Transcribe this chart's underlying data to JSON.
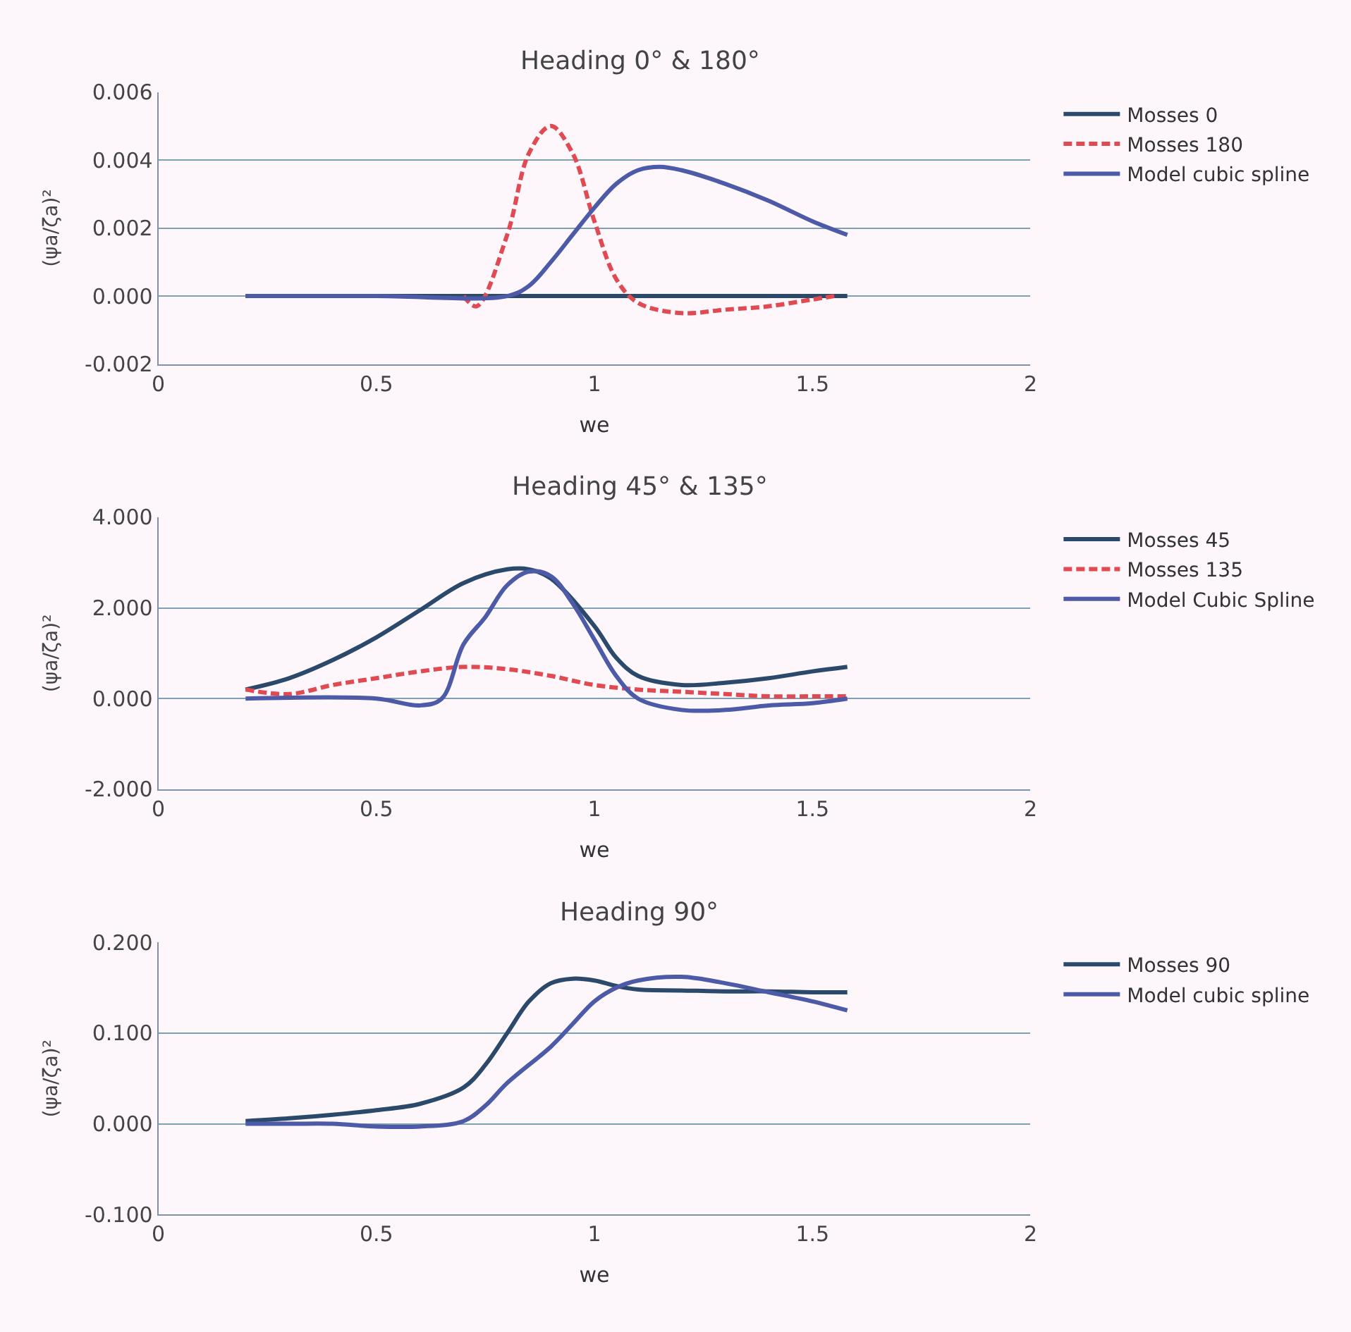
{
  "chart_data": [
    {
      "type": "line",
      "title": "Heading 0° & 180°",
      "xlabel": "we",
      "ylabel": "(ψa/ζa)²",
      "xlim": [
        0,
        2
      ],
      "xticks": [
        0,
        0.5,
        1,
        1.5,
        2
      ],
      "ylim": [
        -0.002,
        0.006
      ],
      "yticks": [
        {
          "value": -0.002,
          "label": "-0.002"
        },
        {
          "value": 0,
          "label": "0.000"
        },
        {
          "value": 0.002,
          "label": "0.002"
        },
        {
          "value": 0.004,
          "label": "0.004"
        },
        {
          "value": 0.006,
          "label": "0.006"
        }
      ],
      "grid": "y",
      "legend": "right",
      "marker": "none",
      "series": [
        {
          "name": "Mosses 0",
          "color": "#2b4a6b",
          "line_style": "solid",
          "x": [
            0.2,
            0.4,
            0.6,
            0.8,
            1.0,
            1.2,
            1.4,
            1.58
          ],
          "values": [
            0,
            0,
            0,
            0,
            0,
            0,
            0,
            0
          ]
        },
        {
          "name": "Mosses 180",
          "color": "#e04a52",
          "line_style": "dashed",
          "x": [
            0.7,
            0.73,
            0.8,
            0.85,
            0.9,
            0.95,
            1.0,
            1.05,
            1.1,
            1.2,
            1.3,
            1.4,
            1.5,
            1.55
          ],
          "values": [
            0,
            -0.0003,
            0.0018,
            0.0042,
            0.005,
            0.0042,
            0.0022,
            0.0005,
            -0.0002,
            -0.0005,
            -0.0004,
            -0.0003,
            -0.0001,
            0
          ]
        },
        {
          "name": "Model cubic spline",
          "color": "#4c5aa8",
          "line_style": "solid",
          "x": [
            0.2,
            0.5,
            0.8,
            0.85,
            0.9,
            0.95,
            1.0,
            1.05,
            1.1,
            1.15,
            1.2,
            1.3,
            1.4,
            1.5,
            1.58
          ],
          "values": [
            0,
            0,
            0,
            0.0003,
            0.001,
            0.0018,
            0.0026,
            0.0033,
            0.0037,
            0.0038,
            0.0037,
            0.0033,
            0.0028,
            0.0022,
            0.0018
          ]
        }
      ]
    },
    {
      "type": "line",
      "title": "Heading 45° & 135°",
      "xlabel": "we",
      "ylabel": "(ψa/ζa)²",
      "xlim": [
        0,
        2
      ],
      "xticks": [
        0,
        0.5,
        1,
        1.5,
        2
      ],
      "ylim": [
        -2,
        4
      ],
      "yticks": [
        {
          "value": -2,
          "label": "-2.000"
        },
        {
          "value": 0,
          "label": "0.000"
        },
        {
          "value": 2,
          "label": "2.000"
        },
        {
          "value": 4,
          "label": "4.000"
        }
      ],
      "grid": "y",
      "legend": "right",
      "marker": "none",
      "series": [
        {
          "name": "Mosses 45",
          "color": "#2b4a6b",
          "line_style": "solid",
          "x": [
            0.2,
            0.3,
            0.4,
            0.5,
            0.6,
            0.7,
            0.8,
            0.85,
            0.9,
            1.0,
            1.05,
            1.1,
            1.2,
            1.3,
            1.4,
            1.5,
            1.58
          ],
          "values": [
            0.2,
            0.45,
            0.85,
            1.35,
            1.95,
            2.55,
            2.85,
            2.85,
            2.65,
            1.6,
            0.9,
            0.5,
            0.3,
            0.35,
            0.45,
            0.6,
            0.7
          ]
        },
        {
          "name": "Mosses 135",
          "color": "#e04a52",
          "line_style": "dashed",
          "x": [
            0.2,
            0.3,
            0.4,
            0.5,
            0.6,
            0.7,
            0.8,
            0.9,
            1.0,
            1.1,
            1.2,
            1.3,
            1.4,
            1.5,
            1.58
          ],
          "values": [
            0.2,
            0.1,
            0.3,
            0.45,
            0.6,
            0.7,
            0.65,
            0.5,
            0.3,
            0.2,
            0.15,
            0.1,
            0.05,
            0.05,
            0.05
          ]
        },
        {
          "name": "Model Cubic Spline",
          "color": "#4c5aa8",
          "line_style": "solid",
          "x": [
            0.2,
            0.5,
            0.6,
            0.65,
            0.7,
            0.75,
            0.8,
            0.85,
            0.9,
            0.95,
            1.0,
            1.05,
            1.1,
            1.2,
            1.3,
            1.4,
            1.5,
            1.58
          ],
          "values": [
            0,
            0,
            -0.15,
            0,
            1.2,
            1.8,
            2.5,
            2.8,
            2.7,
            2.1,
            1.3,
            0.5,
            0,
            -0.25,
            -0.25,
            -0.15,
            -0.1,
            0
          ]
        }
      ]
    },
    {
      "type": "line",
      "title": "Heading 90°",
      "xlabel": "we",
      "ylabel": "(ψa/ζa)²",
      "xlim": [
        0,
        2
      ],
      "xticks": [
        0,
        0.5,
        1,
        1.5,
        2
      ],
      "ylim": [
        -0.1,
        0.2
      ],
      "yticks": [
        {
          "value": -0.1,
          "label": "-0.100"
        },
        {
          "value": 0,
          "label": "0.000"
        },
        {
          "value": 0.1,
          "label": "0.100"
        },
        {
          "value": 0.2,
          "label": "0.200"
        }
      ],
      "grid": "y",
      "legend": "right",
      "marker": "none",
      "series": [
        {
          "name": "Mosses 90",
          "color": "#2b4a6b",
          "line_style": "solid",
          "x": [
            0.2,
            0.3,
            0.4,
            0.5,
            0.6,
            0.7,
            0.75,
            0.8,
            0.85,
            0.9,
            0.95,
            1.0,
            1.05,
            1.1,
            1.2,
            1.3,
            1.4,
            1.5,
            1.58
          ],
          "values": [
            0.003,
            0.006,
            0.01,
            0.015,
            0.022,
            0.04,
            0.065,
            0.1,
            0.135,
            0.155,
            0.16,
            0.158,
            0.152,
            0.148,
            0.147,
            0.146,
            0.146,
            0.145,
            0.145
          ]
        },
        {
          "name": "Model cubic spline",
          "color": "#4c5aa8",
          "line_style": "solid",
          "x": [
            0.2,
            0.3,
            0.4,
            0.5,
            0.6,
            0.7,
            0.75,
            0.8,
            0.9,
            0.95,
            1.0,
            1.05,
            1.1,
            1.2,
            1.3,
            1.4,
            1.5,
            1.58
          ],
          "values": [
            0,
            0,
            0,
            -0.003,
            -0.003,
            0.003,
            0.02,
            0.045,
            0.085,
            0.11,
            0.135,
            0.15,
            0.158,
            0.162,
            0.155,
            0.145,
            0.135,
            0.125
          ]
        }
      ]
    }
  ]
}
